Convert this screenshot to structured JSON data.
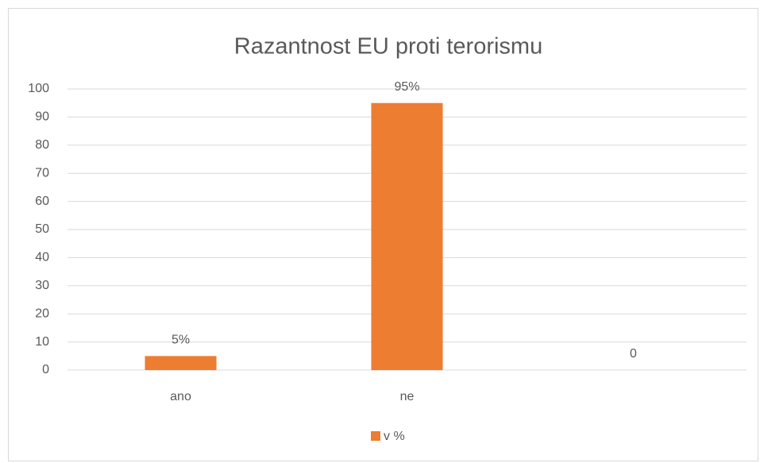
{
  "chart_data": {
    "type": "bar",
    "title": "Razantnost EU proti terorismu",
    "categories": [
      "ano",
      "ne",
      null
    ],
    "series": [
      {
        "name": "v %",
        "color": "#ed7d31",
        "values": [
          5,
          95,
          0
        ],
        "value_labels": [
          "5%",
          "95%",
          "0"
        ]
      }
    ],
    "ylim": [
      0,
      100
    ],
    "yticks": [
      0,
      10,
      20,
      30,
      40,
      50,
      60,
      70,
      80,
      90,
      100
    ],
    "grid": true,
    "legend": "bottom"
  }
}
